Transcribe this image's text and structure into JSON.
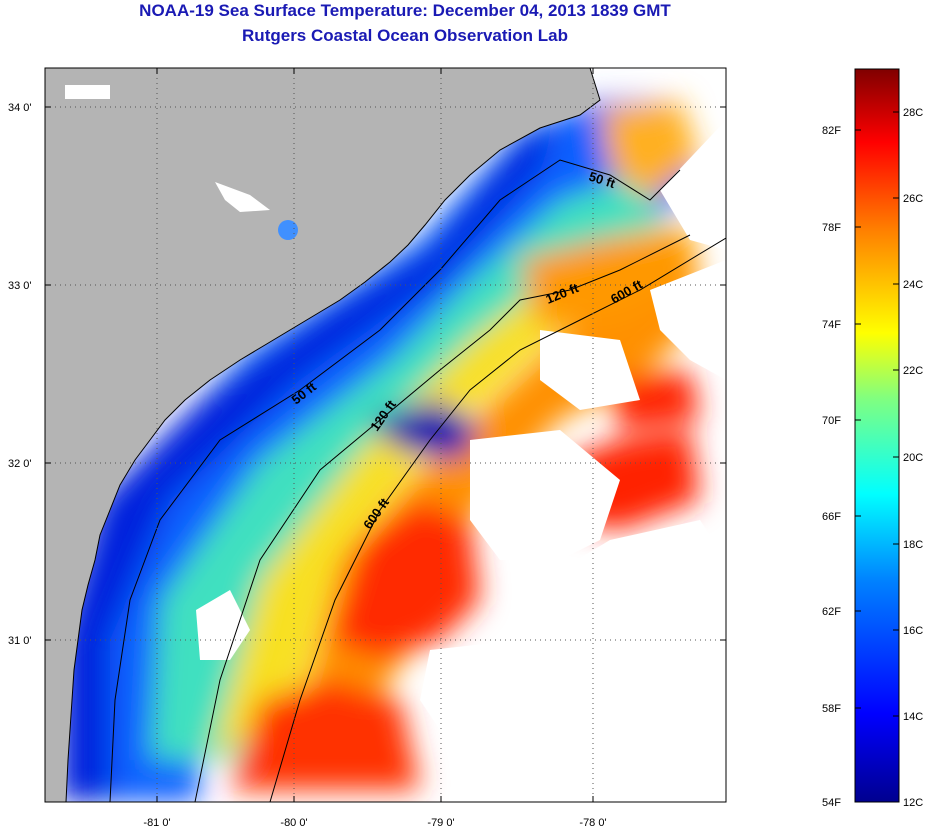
{
  "title": "NOAA-19 Sea Surface Temperature:  December 04, 2013 1839 GMT",
  "subtitle": "Rutgers Coastal Ocean Observation Lab",
  "map": {
    "lat_ticks": [
      "34 0'",
      "33 0'",
      "32 0'",
      "31 0'"
    ],
    "lon_ticks": [
      "-81 0'",
      "-80 0'",
      "-79 0'",
      "-78 0'"
    ],
    "depth_labels": [
      {
        "id": "depth-label-50ft-north",
        "text": "50 ft"
      },
      {
        "id": "depth-label-120ft-north",
        "text": "120 ft"
      },
      {
        "id": "depth-label-600ft-north",
        "text": "600 ft"
      },
      {
        "id": "depth-label-50ft-south",
        "text": "50 ft"
      },
      {
        "id": "depth-label-120ft-south",
        "text": "120 ft"
      },
      {
        "id": "depth-label-600ft-south",
        "text": "600 ft"
      }
    ],
    "land_color": "#b4b4b4",
    "ocean_nodata_color": "#ffffff"
  },
  "colorbar": {
    "fahrenheit_labels": [
      "82F",
      "78F",
      "74F",
      "70F",
      "66F",
      "62F",
      "58F",
      "54F"
    ],
    "celsius_labels": [
      "28C",
      "26C",
      "24C",
      "22C",
      "20C",
      "18C",
      "16C",
      "14C",
      "12C"
    ],
    "colors": [
      "#800000",
      "#ff0000",
      "#ff8000",
      "#ffff00",
      "#80ff80",
      "#00ffff",
      "#0080ff",
      "#0000ff",
      "#00008f"
    ]
  }
}
